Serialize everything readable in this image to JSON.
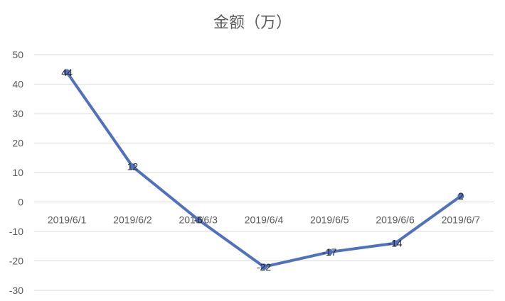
{
  "chart_data": {
    "type": "line",
    "title": "金额（万）",
    "categories": [
      "2019/6/1",
      "2019/6/2",
      "2019/6/3",
      "2019/6/4",
      "2019/6/5",
      "2019/6/6",
      "2019/6/7"
    ],
    "series": [
      {
        "values": [
          44,
          12,
          -6,
          -22,
          -17,
          -14,
          2
        ],
        "color": "#4f71be"
      }
    ],
    "ylim": [
      -30,
      50
    ],
    "yticks": [
      50,
      40,
      30,
      20,
      10,
      0,
      -10,
      -20,
      -30
    ],
    "grid": true,
    "data_labels": true,
    "legend": "none"
  }
}
